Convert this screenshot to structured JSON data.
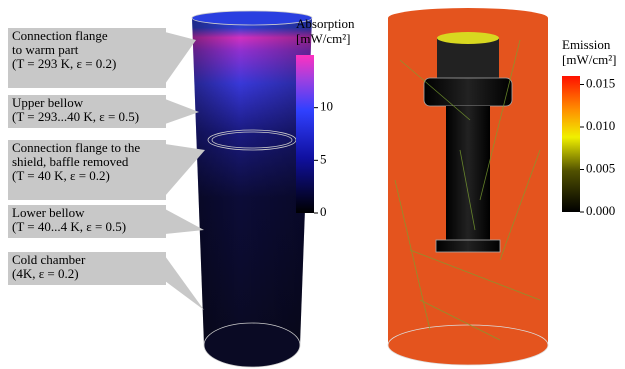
{
  "callouts": [
    {
      "lines": [
        "Connection flange",
        "to warm part",
        "(T = 293 K, ε = 0.2)"
      ]
    },
    {
      "lines": [
        "Upper bellow",
        "(T = 293...40 K, ε = 0.5)"
      ]
    },
    {
      "lines": [
        "Connection flange to the",
        "shield, baffle removed",
        "(T = 40 K, ε = 0.2)"
      ]
    },
    {
      "lines": [
        "Lower bellow",
        "(T = 40...4 K, ε = 0.5)"
      ]
    },
    {
      "lines": [
        "Cold chamber",
        "(4K, ε = 0.2)"
      ]
    }
  ],
  "absorption_colorbar": {
    "title": [
      "Absorption",
      "[mW/cm²]"
    ],
    "range": [
      0,
      15
    ],
    "ticks": [
      0,
      5,
      10
    ]
  },
  "emission_colorbar": {
    "title": [
      "Emission",
      "[mW/cm²]"
    ],
    "range": [
      0,
      0.016
    ],
    "ticks": [
      {
        "value": 0,
        "label": "0.000"
      },
      {
        "value": 0.005,
        "label": "0.005"
      },
      {
        "value": 0.01,
        "label": "0.010"
      },
      {
        "value": 0.015,
        "label": "0.015"
      }
    ]
  }
}
